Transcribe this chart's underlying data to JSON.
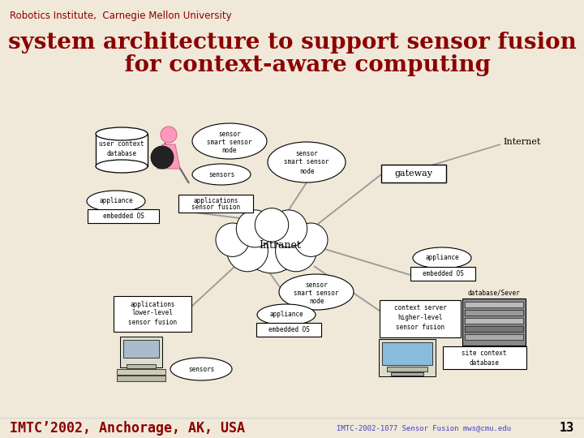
{
  "bg_color": "#f0e8d8",
  "title_line1": "system architecture to support sensor fusion",
  "title_line2": "    for context-aware computing",
  "title_color": "#8b0000",
  "title_fontsize": 20,
  "subtitle": "Robotics Institute,  Carnegie Mellon University",
  "subtitle_color": "#8b0000",
  "subtitle_fontsize": 8.5,
  "footer_left": "IMTC’2002, Anchorage, AK, USA",
  "footer_right": "IMTC-2002-1077 Sensor Fusion mws@cmu.edu",
  "footer_page": "13",
  "footer_left_color": "#8b0000",
  "footer_right_color": "#4444cc",
  "line_color": "#999999"
}
